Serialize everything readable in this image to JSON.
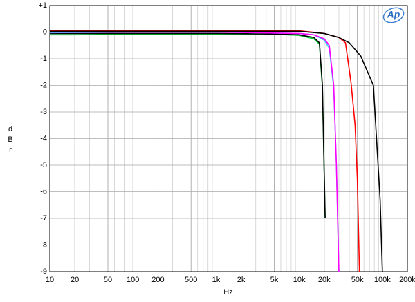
{
  "chart_data": {
    "type": "line",
    "x_label": "Hz",
    "y_label": "dBr",
    "logo": "Ap",
    "xscale": "log",
    "grid": true,
    "minor_grid": true,
    "xlim": [
      10,
      200000
    ],
    "ylim": [
      -9,
      1
    ],
    "xticks": [
      10,
      20,
      50,
      100,
      200,
      500,
      {
        "value": 1000,
        "label": "1k"
      },
      {
        "value": 2000,
        "label": "2k"
      },
      {
        "value": 5000,
        "label": "5k"
      },
      {
        "value": 10000,
        "label": "10k"
      },
      {
        "value": 20000,
        "label": "20k"
      },
      {
        "value": 50000,
        "label": "50k"
      },
      {
        "value": 100000,
        "label": "100k"
      },
      {
        "value": 200000,
        "label": "200k"
      }
    ],
    "yticks": [
      {
        "value": 1,
        "label": "+1"
      },
      {
        "value": 0,
        "label": "-0"
      },
      -1,
      -2,
      -3,
      -4,
      -5,
      -6,
      -7,
      -8,
      -9
    ],
    "series": [
      {
        "color": "#00cc33",
        "x": [
          10,
          20,
          50,
          100,
          1000,
          5000,
          10000,
          15000,
          17500,
          19000,
          20500
        ],
        "values": [
          -0.1,
          -0.1,
          -0.08,
          -0.07,
          -0.07,
          -0.08,
          -0.12,
          -0.25,
          -0.45,
          -2.1,
          -7.0
        ]
      },
      {
        "color": "#000000",
        "x": [
          10,
          20,
          50,
          100,
          1000,
          5000,
          10000,
          15000,
          17500,
          19000,
          20500
        ],
        "values": [
          -0.05,
          -0.05,
          -0.05,
          -0.05,
          -0.05,
          -0.07,
          -0.1,
          -0.2,
          -0.4,
          -2,
          -7
        ]
      },
      {
        "color": "#33ccff",
        "x": [
          10,
          100,
          1000,
          10000,
          15000,
          20000,
          23000,
          26000,
          28000,
          30000
        ],
        "values": [
          -0.02,
          0,
          0,
          -0.05,
          -0.1,
          -0.3,
          -0.6,
          -2.1,
          -5,
          -9
        ]
      },
      {
        "color": "#ff00ff",
        "x": [
          10,
          100,
          1000,
          10000,
          15000,
          20000,
          23000,
          26000,
          28000,
          30000
        ],
        "values": [
          0,
          0,
          0,
          -0.05,
          -0.1,
          -0.25,
          -0.5,
          -2,
          -5,
          -9
        ]
      },
      {
        "color": "#ff0000",
        "x": [
          10,
          20,
          100,
          1000,
          10000,
          20000,
          30000,
          36000,
          42000,
          47000,
          50000,
          53000
        ],
        "values": [
          0.05,
          0.05,
          0.05,
          0.05,
          0.05,
          -0.05,
          -0.2,
          -0.4,
          -1.9,
          -3.5,
          -5.5,
          -9
        ]
      },
      {
        "color": "#000000",
        "x": [
          10,
          100,
          1000,
          10000,
          20000,
          30000,
          40000,
          55000,
          78000,
          94000,
          100000
        ],
        "values": [
          0.03,
          0.03,
          0.03,
          0.03,
          -0.05,
          -0.2,
          -0.4,
          -0.9,
          -2,
          -6.3,
          -9
        ]
      }
    ]
  }
}
